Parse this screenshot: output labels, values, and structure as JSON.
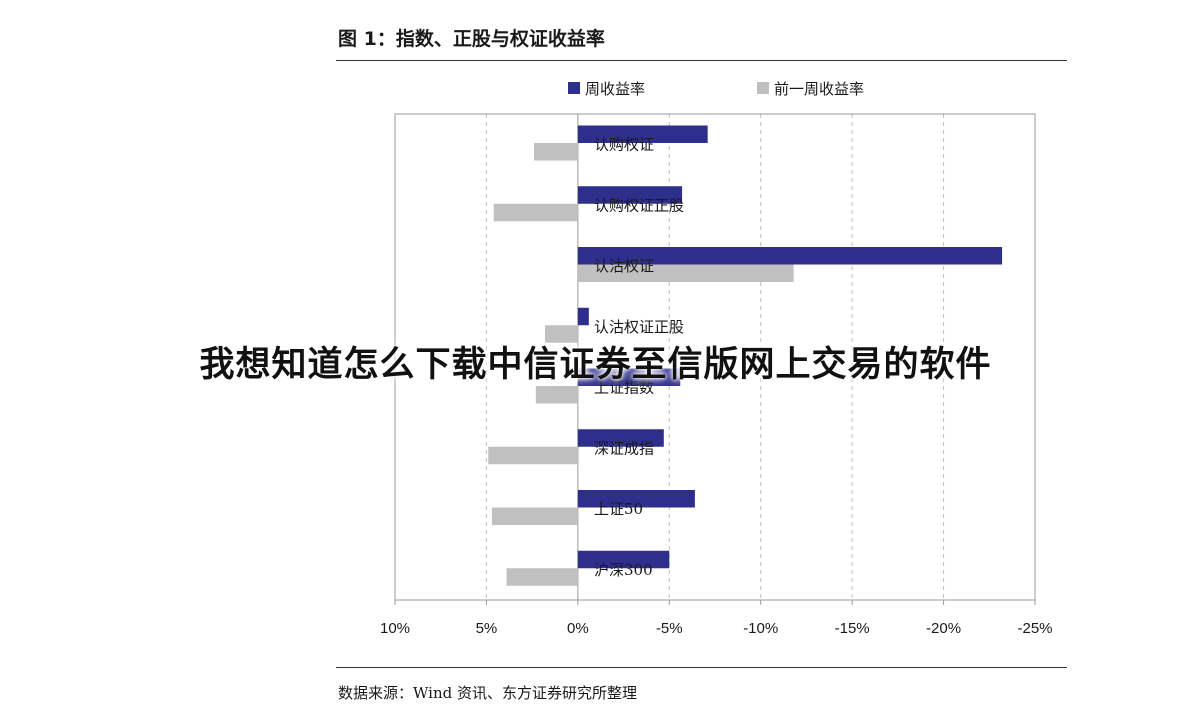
{
  "figure": {
    "title": "图 1：指数、正股与权证收益率",
    "source": "数据来源：Wind 资讯、东方证券研究所整理"
  },
  "overlay": {
    "text": "我想知道怎么下载中信证券至信版网上交易的软件"
  },
  "chart_data": {
    "type": "bar",
    "orientation": "horizontal",
    "x_reversed": true,
    "xlim": [
      10,
      -25
    ],
    "x_ticks": [
      10,
      5,
      0,
      -5,
      -10,
      -15,
      -20,
      -25
    ],
    "x_tick_labels": [
      "10%",
      "5%",
      "0%",
      "-5%",
      "-10%",
      "-15%",
      "-20%",
      "-25%"
    ],
    "grid": "vertical-dashed",
    "legend_position": "top",
    "categories": [
      "认购权证",
      "认购权证正股",
      "认沽权证",
      "认沽权证正股",
      "上证指数",
      "深证成指",
      "上证50",
      "沪深300"
    ],
    "series": [
      {
        "name": "周收益率",
        "color": "#2e2e8c",
        "values": [
          -7.1,
          -5.7,
          -23.2,
          -0.6,
          -5.6,
          -4.7,
          -6.4,
          -5.0
        ]
      },
      {
        "name": "前一周收益率",
        "color": "#c0c0c0",
        "values": [
          2.4,
          4.6,
          -11.8,
          1.8,
          2.3,
          4.9,
          4.7,
          3.9
        ]
      }
    ]
  }
}
